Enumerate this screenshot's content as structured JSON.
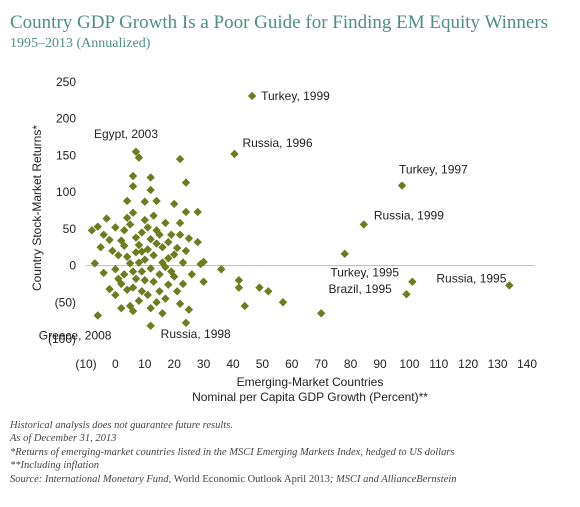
{
  "title": "Country GDP Growth Is a Poor Guide for Finding EM Equity Winners",
  "subtitle": "1995–2013 (Annualized)",
  "notes": {
    "line1": "Historical analysis does not guarantee future results.",
    "line2": "As of December 31, 2013",
    "line3": "*Returns of emerging-market countries listed in the MSCI Emerging Markets Index, hedged to US dollars",
    "line4": "**Including inflation",
    "source_prefix": "Source: International Monetary Fund, ",
    "source_title": "World Economic Outlook April 2013",
    "source_suffix": "; MSCI and AllianceBernstein"
  },
  "colors": {
    "marker": "#6b7d1f",
    "title": "#4f8f82",
    "grid": "#bbbbbb"
  },
  "chart_data": {
    "type": "scatter",
    "xlabel_line1": "Emerging-Market Countries",
    "xlabel_line2": "Nominal per Capita GDP Growth (Percent)**",
    "ylabel": "Country Stock-Market Returns*",
    "xlim": [
      -10,
      140
    ],
    "ylim": [
      -100,
      250
    ],
    "x_ticks": [
      -10,
      0,
      10,
      20,
      30,
      40,
      50,
      60,
      70,
      80,
      90,
      100,
      110,
      120,
      130,
      140
    ],
    "x_tick_labels": [
      "(10)",
      "0",
      "10",
      "20",
      "30",
      "40",
      "50",
      "60",
      "70",
      "80",
      "90",
      "100",
      "110",
      "120",
      "130",
      "140"
    ],
    "y_ticks": [
      250,
      200,
      150,
      100,
      50,
      0,
      -50,
      -100
    ],
    "y_tick_labels": [
      "250",
      "200",
      "150",
      "100",
      "50",
      "0",
      "(50)",
      "(100)"
    ],
    "zero_line": true,
    "annotations": [
      {
        "text": "Turkey, 1999",
        "x": 46.5,
        "y": 231
      },
      {
        "text": "Egypt, 2003",
        "x": 7,
        "y": 155
      },
      {
        "text": "Russia, 1996",
        "x": 40.5,
        "y": 152
      },
      {
        "text": "Turkey, 1997",
        "x": 97.5,
        "y": 109
      },
      {
        "text": "Russia, 1999",
        "x": 84.5,
        "y": 56
      },
      {
        "text": "Turkey, 1995",
        "x": 101,
        "y": -22
      },
      {
        "text": "Brazil, 1995",
        "x": 99,
        "y": -39
      },
      {
        "text": "Russia, 1995",
        "x": 134,
        "y": -27
      },
      {
        "text": "Greece, 2008",
        "x": -6,
        "y": -68
      },
      {
        "text": "Russia, 1998",
        "x": 12,
        "y": -82
      }
    ],
    "points": [
      {
        "x": 46.5,
        "y": 231
      },
      {
        "x": 40.5,
        "y": 152
      },
      {
        "x": 97.5,
        "y": 109
      },
      {
        "x": 84.5,
        "y": 56
      },
      {
        "x": 101,
        "y": -22
      },
      {
        "x": 99,
        "y": -39
      },
      {
        "x": 134,
        "y": -27
      },
      {
        "x": 78,
        "y": 16
      },
      {
        "x": 70,
        "y": -65
      },
      {
        "x": 57,
        "y": -50
      },
      {
        "x": 52,
        "y": -35
      },
      {
        "x": 49,
        "y": -30
      },
      {
        "x": 44,
        "y": -55
      },
      {
        "x": 42,
        "y": -30
      },
      {
        "x": 42,
        "y": -20
      },
      {
        "x": 36,
        "y": -5
      },
      {
        "x": 30,
        "y": 5
      },
      {
        "x": 29,
        "y": 2
      },
      {
        "x": 30,
        "y": -22
      },
      {
        "x": 24,
        "y": -78
      },
      {
        "x": 22,
        "y": 145
      },
      {
        "x": 24,
        "y": 113
      },
      {
        "x": 20,
        "y": 84
      },
      {
        "x": 24,
        "y": 73
      },
      {
        "x": 28,
        "y": 73
      },
      {
        "x": 22,
        "y": 58
      },
      {
        "x": 22,
        "y": 42
      },
      {
        "x": 25,
        "y": 37
      },
      {
        "x": 28,
        "y": 32
      },
      {
        "x": 7,
        "y": 155
      },
      {
        "x": 8,
        "y": 147
      },
      {
        "x": 6,
        "y": 122
      },
      {
        "x": 12,
        "y": 120
      },
      {
        "x": 6,
        "y": 108
      },
      {
        "x": 12,
        "y": 103
      },
      {
        "x": 14,
        "y": 88
      },
      {
        "x": 10,
        "y": 87
      },
      {
        "x": 4,
        "y": 88
      },
      {
        "x": -6,
        "y": -68
      },
      {
        "x": 12,
        "y": -82
      },
      {
        "x": -8,
        "y": 48
      },
      {
        "x": -6,
        "y": 53
      },
      {
        "x": -3,
        "y": 64
      },
      {
        "x": -4,
        "y": 42
      },
      {
        "x": -2,
        "y": 35
      },
      {
        "x": -5,
        "y": 25
      },
      {
        "x": -7,
        "y": 3
      },
      {
        "x": -4,
        "y": -10
      },
      {
        "x": -2,
        "y": -32
      },
      {
        "x": 0,
        "y": -40
      },
      {
        "x": 2,
        "y": -25
      },
      {
        "x": 0,
        "y": -5
      },
      {
        "x": 1,
        "y": 14
      },
      {
        "x": 0,
        "y": 52
      },
      {
        "x": 2,
        "y": 34
      },
      {
        "x": -1,
        "y": 20
      },
      {
        "x": 3,
        "y": 48
      },
      {
        "x": 4,
        "y": 65
      },
      {
        "x": 5,
        "y": 56
      },
      {
        "x": 6,
        "y": 72
      },
      {
        "x": 3,
        "y": 27
      },
      {
        "x": 4,
        "y": 12
      },
      {
        "x": 5,
        "y": 3
      },
      {
        "x": 3,
        "y": -12
      },
      {
        "x": 4,
        "y": -33
      },
      {
        "x": 5,
        "y": -55
      },
      {
        "x": 2,
        "y": -58
      },
      {
        "x": 6,
        "y": -62
      },
      {
        "x": 8,
        "y": -48
      },
      {
        "x": 6,
        "y": -30
      },
      {
        "x": 7,
        "y": -18
      },
      {
        "x": 7,
        "y": 18
      },
      {
        "x": 8,
        "y": 28
      },
      {
        "x": 9,
        "y": 45
      },
      {
        "x": 10,
        "y": 62
      },
      {
        "x": 9,
        "y": -8
      },
      {
        "x": 10,
        "y": 8
      },
      {
        "x": 11,
        "y": 22
      },
      {
        "x": 12,
        "y": 36
      },
      {
        "x": 11,
        "y": 52
      },
      {
        "x": 13,
        "y": 68
      },
      {
        "x": 14,
        "y": 48
      },
      {
        "x": 13,
        "y": 14
      },
      {
        "x": 12,
        "y": -4
      },
      {
        "x": 13,
        "y": -22
      },
      {
        "x": 11,
        "y": -40
      },
      {
        "x": 14,
        "y": -50
      },
      {
        "x": 15,
        "y": -35
      },
      {
        "x": 15,
        "y": -12
      },
      {
        "x": 16,
        "y": 4
      },
      {
        "x": 16,
        "y": 25
      },
      {
        "x": 15,
        "y": 42
      },
      {
        "x": 17,
        "y": 58
      },
      {
        "x": 18,
        "y": 32
      },
      {
        "x": 18,
        "y": 10
      },
      {
        "x": 19,
        "y": -8
      },
      {
        "x": 18,
        "y": -26
      },
      {
        "x": 17,
        "y": -45
      },
      {
        "x": 16,
        "y": -65
      },
      {
        "x": 20,
        "y": -15
      },
      {
        "x": 20,
        "y": 15
      },
      {
        "x": 21,
        "y": -35
      },
      {
        "x": 22,
        "y": -52
      },
      {
        "x": 23,
        "y": -25
      },
      {
        "x": 23,
        "y": 4
      },
      {
        "x": 24,
        "y": 20
      },
      {
        "x": 25,
        "y": -60
      },
      {
        "x": 26,
        "y": -12
      },
      {
        "x": 9,
        "y": -35
      },
      {
        "x": 7,
        "y": 38
      },
      {
        "x": 8,
        "y": 4
      },
      {
        "x": 10,
        "y": -20
      },
      {
        "x": 12,
        "y": -58
      },
      {
        "x": 14,
        "y": 30
      },
      {
        "x": 17,
        "y": -2
      },
      {
        "x": 19,
        "y": 42
      },
      {
        "x": 21,
        "y": 24
      },
      {
        "x": 1,
        "y": -18
      },
      {
        "x": 6,
        "y": -8
      },
      {
        "x": 9,
        "y": 19
      }
    ]
  }
}
